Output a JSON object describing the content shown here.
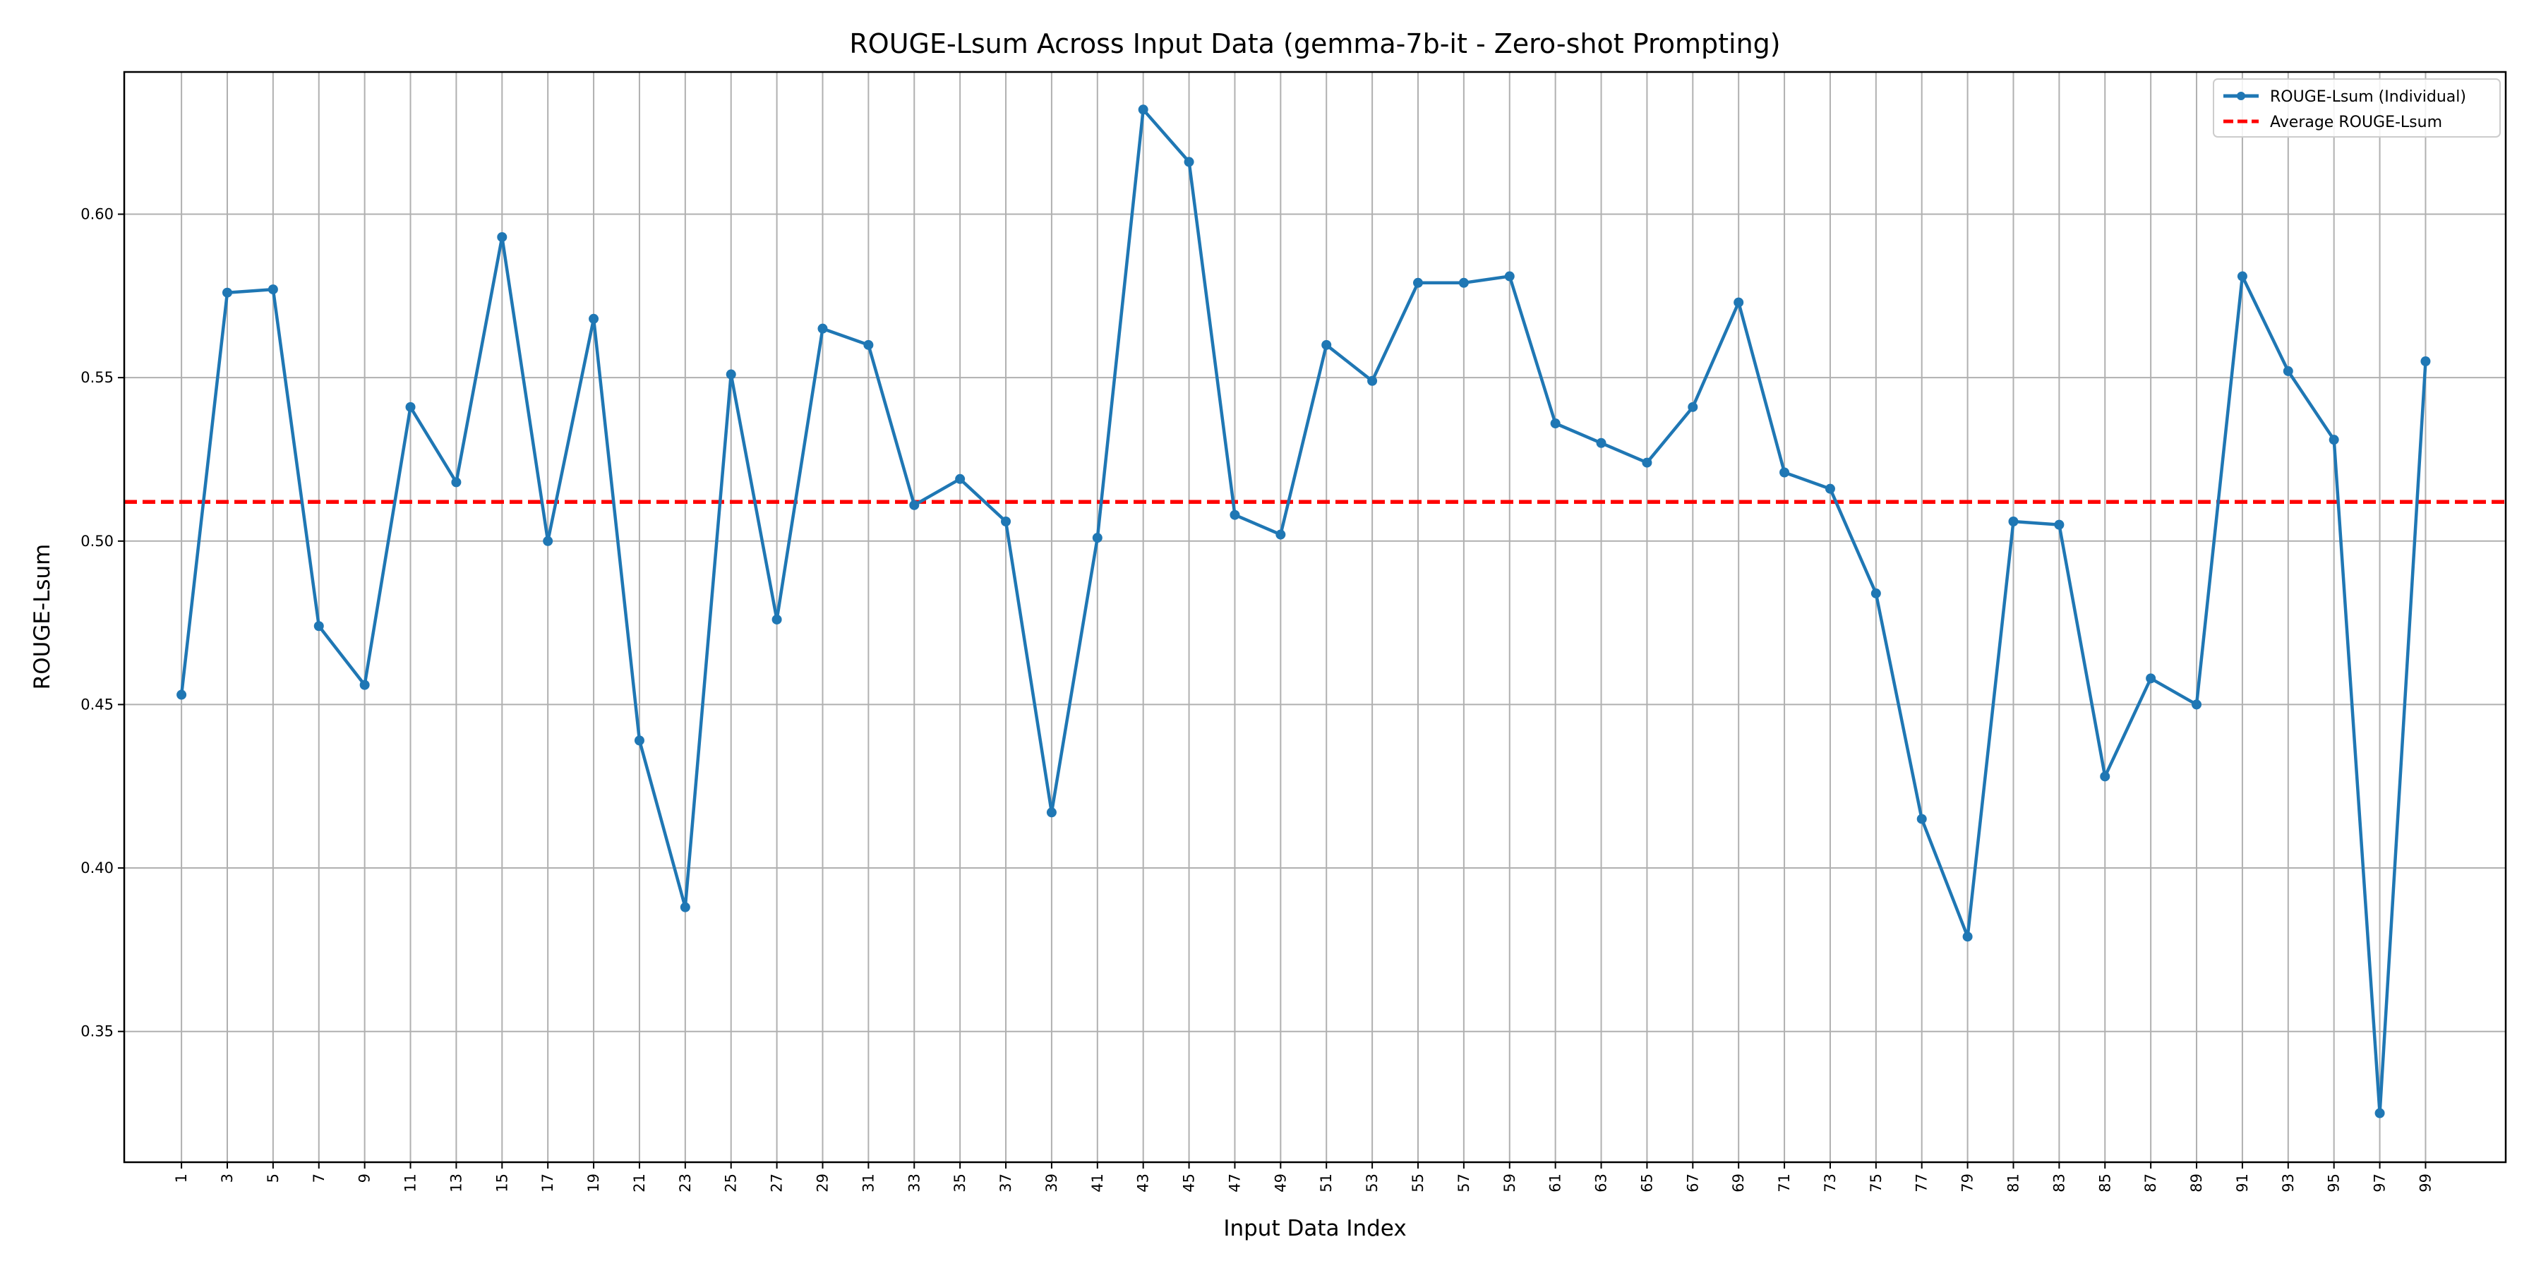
{
  "chart_data": {
    "type": "line",
    "title": "ROUGE-Lsum Across Input Data (gemma-7b-it - Zero-shot Prompting)",
    "xlabel": "Input Data Index",
    "ylabel": "ROUGE-Lsum",
    "xlim": [
      -1.5,
      102.5
    ],
    "ylim": [
      0.31,
      0.6435
    ],
    "x_ticks": [
      1,
      3,
      5,
      7,
      9,
      11,
      13,
      15,
      17,
      19,
      21,
      23,
      25,
      27,
      29,
      31,
      33,
      35,
      37,
      39,
      41,
      43,
      45,
      47,
      49,
      51,
      53,
      55,
      57,
      59,
      61,
      63,
      65,
      67,
      69,
      71,
      73,
      75,
      77,
      79,
      81,
      83,
      85,
      87,
      89,
      91,
      93,
      95,
      97,
      99
    ],
    "x_tick_labels": [
      "1",
      "3",
      "5",
      "7",
      "9",
      "11",
      "13",
      "15",
      "17",
      "19",
      "21",
      "23",
      "25",
      "27",
      "29",
      "31",
      "33",
      "35",
      "37",
      "39",
      "41",
      "43",
      "45",
      "47",
      "49",
      "51",
      "53",
      "55",
      "57",
      "59",
      "61",
      "63",
      "65",
      "67",
      "69",
      "71",
      "73",
      "75",
      "77",
      "79",
      "81",
      "83",
      "85",
      "87",
      "89",
      "91",
      "93",
      "95",
      "97",
      "99"
    ],
    "y_ticks": [
      0.35,
      0.4,
      0.45,
      0.5,
      0.55,
      0.6
    ],
    "y_tick_labels": [
      "0.35",
      "0.40",
      "0.45",
      "0.50",
      "0.55",
      "0.60"
    ],
    "grid": true,
    "legend_position": "top-right",
    "series": [
      {
        "name": "ROUGE-Lsum (Individual)",
        "color": "#1f77b4",
        "style": "solid-line-with-markers",
        "x": [
          1,
          3,
          5,
          7,
          9,
          11,
          13,
          15,
          17,
          19,
          21,
          23,
          25,
          27,
          29,
          31,
          33,
          35,
          37,
          39,
          41,
          43,
          45,
          47,
          49,
          51,
          53,
          55,
          57,
          59,
          61,
          63,
          65,
          67,
          69,
          71,
          73,
          75,
          77,
          79,
          81,
          83,
          85,
          87,
          89,
          91,
          93,
          95,
          97,
          99
        ],
        "y": [
          0.453,
          0.576,
          0.577,
          0.474,
          0.456,
          0.541,
          0.518,
          0.593,
          0.5,
          0.568,
          0.439,
          0.388,
          0.551,
          0.476,
          0.565,
          0.56,
          0.511,
          0.519,
          0.506,
          0.417,
          0.501,
          0.632,
          0.616,
          0.508,
          0.502,
          0.56,
          0.549,
          0.579,
          0.579,
          0.581,
          0.536,
          0.53,
          0.524,
          0.541,
          0.573,
          0.521,
          0.516,
          0.484,
          0.415,
          0.379,
          0.506,
          0.505,
          0.428,
          0.458,
          0.45,
          0.581,
          0.552,
          0.531,
          0.325,
          0.555
        ]
      },
      {
        "name": "Average ROUGE-Lsum",
        "color": "#ff0000",
        "style": "dashed-horizontal-line",
        "y": 0.512
      }
    ]
  }
}
